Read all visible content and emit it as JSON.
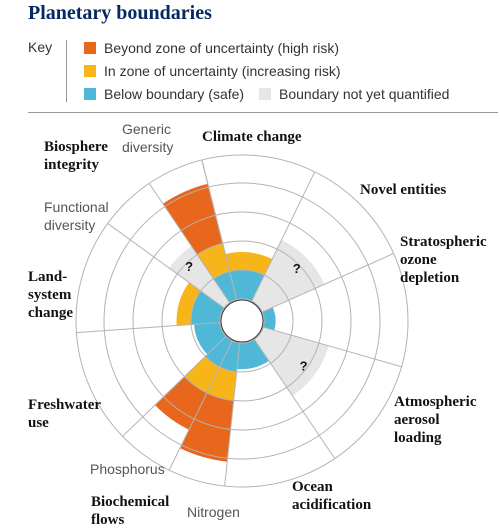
{
  "title": "Planetary boundaries",
  "key": {
    "label": "Key",
    "items": [
      {
        "label": "Beyond zone of uncertainty (high risk)",
        "color": "#e8671d"
      },
      {
        "label": "In zone of uncertainty (increasing risk)",
        "color": "#f7b519"
      },
      {
        "label": "Below boundary (safe)",
        "color": "#4fb8d6"
      },
      {
        "label": "Boundary not yet quantified",
        "color": "#e6e6e6"
      }
    ]
  },
  "colors": {
    "high": "#e8671d",
    "zone": "#f7b519",
    "safe": "#4fb8d6",
    "unknown": "#e6e6e6",
    "grid": "#b3b3b3"
  },
  "boundaries": {
    "climate_change": "Climate change",
    "novel_entities": "Novel entities",
    "stratospheric_ozone": "Stratospheric ozone depletion",
    "aerosol": "Atmospheric aerosol loading",
    "ocean": "Ocean acidification",
    "biochemical": "Biochemical flows",
    "freshwater": "Freshwater use",
    "land": "Land-system change",
    "biosphere": "Biosphere integrity"
  },
  "sub_labels": {
    "generic": "Generic diversity",
    "functional": "Functional diversity",
    "phosphorus": "Phosphorus",
    "nitrogen": "Nitrogen"
  },
  "unknown_mark": "?",
  "segments": [
    {
      "id": "climate",
      "level": 1.62,
      "quantified": true
    },
    {
      "id": "novel",
      "level": 2.25,
      "quantified": false
    },
    {
      "id": "ozone",
      "level": 0.4,
      "quantified": true
    },
    {
      "id": "aerosol",
      "level": 2.25,
      "quantified": false
    },
    {
      "id": "ocean",
      "level": 0.9,
      "quantified": true
    },
    {
      "id": "nitrogen",
      "level": 3.5,
      "quantified": true
    },
    {
      "id": "phosphorus",
      "level": 3.0,
      "quantified": true
    },
    {
      "id": "freshwater",
      "level": 0.9,
      "quantified": true
    },
    {
      "id": "land",
      "level": 1.5,
      "quantified": true
    },
    {
      "id": "functional",
      "level": 2.25,
      "quantified": false
    },
    {
      "id": "generic",
      "level": 3.5,
      "quantified": true
    }
  ]
}
